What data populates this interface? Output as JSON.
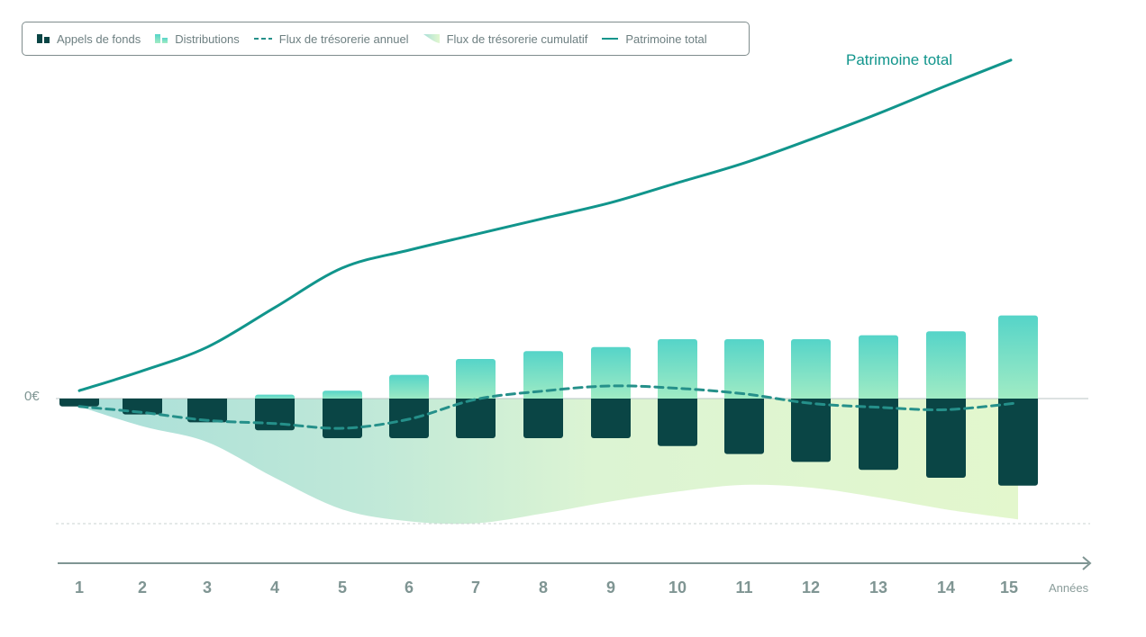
{
  "legend": {
    "calls": "Appels de fonds",
    "distributions": "Distributions",
    "annual": "Flux de trésorerie annuel",
    "cumulative": "Flux de trésorerie cumulatif",
    "total": "Patrimoine total"
  },
  "colors": {
    "calls": "#0a4545",
    "distributions_top": "#55d4c8",
    "distributions_bottom": "#a3ecc4",
    "annual": "#25908a",
    "total": "#11958c",
    "cumulative_left": "#a9dfd9",
    "cumulative_right": "#e2f7cf",
    "axis": "#7f9593"
  },
  "chart_data": {
    "type": "bar",
    "title": "",
    "xlabel": "Années",
    "ylabel": "",
    "zero_label": "0€",
    "total_label": "Patrimoine total",
    "categories": [
      "1",
      "2",
      "3",
      "4",
      "5",
      "6",
      "7",
      "8",
      "9",
      "10",
      "11",
      "12",
      "13",
      "14",
      "15"
    ],
    "ylim": [
      -40,
      100
    ],
    "series": [
      {
        "name": "Appels de fonds",
        "kind": "bar",
        "values": [
          -2,
          -4,
          -6,
          -8,
          -10,
          -10,
          -10,
          -10,
          -10,
          -12,
          -14,
          -16,
          -18,
          -20,
          -22
        ]
      },
      {
        "name": "Distributions",
        "kind": "bar",
        "values": [
          0,
          0,
          0,
          1,
          2,
          6,
          10,
          12,
          13,
          15,
          15,
          15,
          16,
          17,
          21
        ]
      },
      {
        "name": "Flux de trésorerie annuel",
        "kind": "line-dashed",
        "values": [
          -2,
          -3.5,
          -5.5,
          -6.3,
          -7.5,
          -5.2,
          -0.2,
          1.9,
          3.2,
          2.6,
          1.2,
          -1.2,
          -2.2,
          -2.8,
          -1.1
        ]
      },
      {
        "name": "Flux de trésorerie cumulatif",
        "kind": "area",
        "values": [
          -2,
          -7,
          -11,
          -20,
          -28,
          -31,
          -31.5,
          -29,
          -26,
          -23.5,
          -21.8,
          -22.5,
          -25,
          -28,
          -30.5
        ]
      },
      {
        "name": "Patrimoine total",
        "kind": "line",
        "values": [
          2,
          7,
          13,
          23,
          33,
          37.5,
          41.5,
          45.5,
          49.5,
          54.5,
          59.5,
          65.5,
          72,
          79,
          85.5
        ]
      }
    ],
    "grid": false,
    "legend_position": "top-left"
  }
}
